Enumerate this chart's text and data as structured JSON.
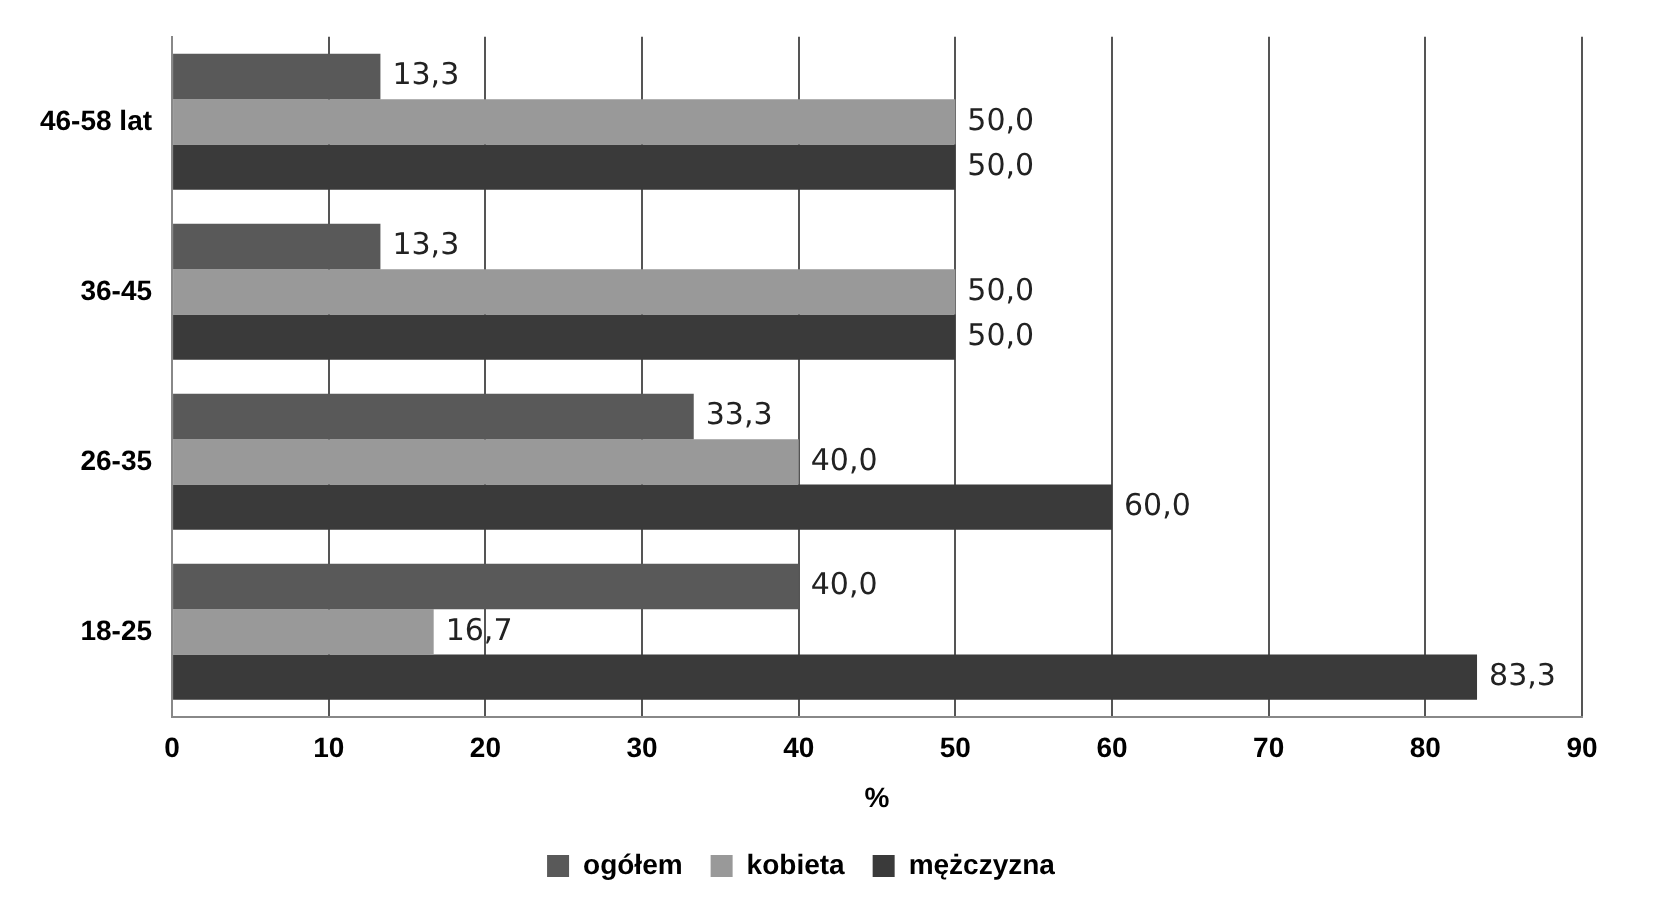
{
  "chart_data": {
    "type": "bar",
    "orientation": "horizontal",
    "xlabel": "%",
    "categories": [
      "46-58 lat",
      "36-45",
      "26-35",
      "18-25"
    ],
    "series": [
      {
        "name": "ogółem",
        "color": "#595959",
        "values": [
          13.3,
          13.3,
          33.3,
          40.0
        ],
        "value_labels": [
          "13,3",
          "13,3",
          "33,3",
          "40,0"
        ]
      },
      {
        "name": "kobieta",
        "color": "#999999",
        "values": [
          50.0,
          50.0,
          40.0,
          16.7
        ],
        "value_labels": [
          "50,0",
          "50,0",
          "40,0",
          "16,7"
        ]
      },
      {
        "name": "mężczyzna",
        "color": "#3a3a3a",
        "values": [
          50.0,
          50.0,
          60.0,
          83.3
        ],
        "value_labels": [
          "50,0",
          "50,0",
          "60,0",
          "83,3"
        ]
      }
    ],
    "xlim": [
      0,
      90
    ],
    "xticks": [
      0,
      10,
      20,
      30,
      40,
      50,
      60,
      70,
      80,
      90
    ],
    "grid": "x",
    "legend": "bottom"
  }
}
